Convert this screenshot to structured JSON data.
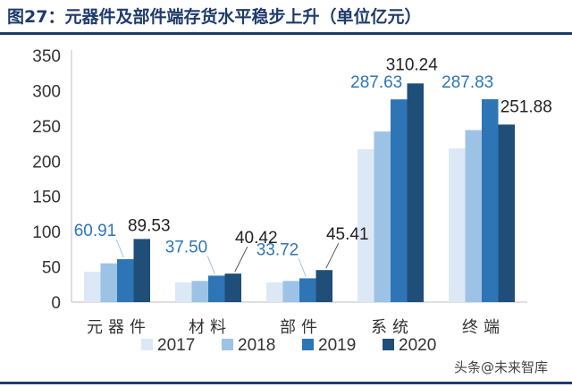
{
  "title": "图27：元器件及部件端存货水平稳步上升（单位亿元）",
  "watermark": "头条@未来智库",
  "colors": {
    "2017": "#dce8f5",
    "2018": "#9cc3e6",
    "2019": "#2e75b6",
    "2020": "#1f4e79",
    "label_highlight": "#2e75b6",
    "label_dark": "#222222",
    "title": "#1f3b6b"
  },
  "chart_data": {
    "type": "bar",
    "title": "图27：元器件及部件端存货水平稳步上升（单位亿元）",
    "xlabel": "",
    "ylabel": "",
    "ylim": [
      0,
      350
    ],
    "yticks": [
      0,
      50,
      100,
      150,
      200,
      250,
      300,
      350
    ],
    "grid": false,
    "legend_position": "bottom",
    "categories": [
      "元器件",
      "材料",
      "部件",
      "系统",
      "终端"
    ],
    "series": [
      {
        "name": "2017",
        "values": [
          43,
          28,
          28,
          217,
          218
        ]
      },
      {
        "name": "2018",
        "values": [
          55,
          30,
          30,
          242,
          244
        ]
      },
      {
        "name": "2019",
        "values": [
          60.91,
          37.5,
          33.72,
          287.63,
          287.83
        ]
      },
      {
        "name": "2020",
        "values": [
          89.53,
          40.42,
          45.41,
          310.24,
          251.88
        ]
      }
    ],
    "data_labels": [
      {
        "series": "2019",
        "category": "元器件",
        "text": "60.91"
      },
      {
        "series": "2020",
        "category": "元器件",
        "text": "89.53"
      },
      {
        "series": "2019",
        "category": "材料",
        "text": "37.50"
      },
      {
        "series": "2020",
        "category": "材料",
        "text": "40.42"
      },
      {
        "series": "2019",
        "category": "部件",
        "text": "33.72"
      },
      {
        "series": "2020",
        "category": "部件",
        "text": "45.41"
      },
      {
        "series": "2019",
        "category": "系统",
        "text": "287.63"
      },
      {
        "series": "2020",
        "category": "系统",
        "text": "310.24"
      },
      {
        "series": "2019",
        "category": "终端",
        "text": "287.83"
      },
      {
        "series": "2020",
        "category": "终端",
        "text": "251.88"
      }
    ]
  }
}
